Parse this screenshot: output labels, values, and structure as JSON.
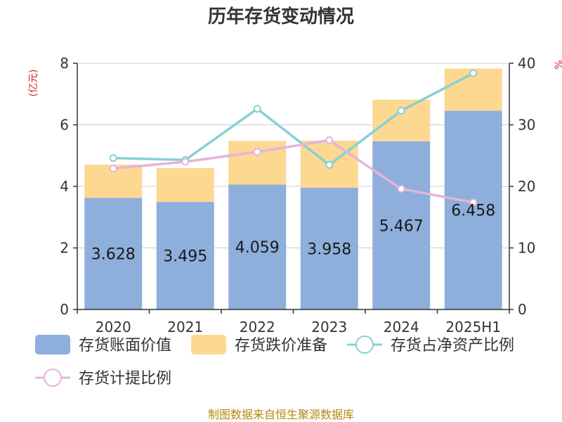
{
  "chart_data": {
    "type": "bar",
    "title": "历年存货变动情况",
    "categories": [
      "2020",
      "2021",
      "2022",
      "2023",
      "2024",
      "2025H1"
    ],
    "left_axis": {
      "unit": "(亿元)",
      "ylim": [
        0,
        8
      ],
      "ticks": [
        "0",
        "2",
        "4",
        "6",
        "8"
      ]
    },
    "right_axis": {
      "unit": "%",
      "ylim": [
        0,
        40
      ],
      "ticks": [
        "0",
        "10",
        "20",
        "30",
        "40"
      ]
    },
    "series": [
      {
        "name": "存货账面价值",
        "kind": "bar",
        "axis": "left",
        "color": "#8eaedc",
        "values": [
          3.628,
          3.495,
          4.059,
          3.958,
          5.467,
          6.458
        ],
        "labels": [
          "3.628",
          "3.495",
          "4.059",
          "3.958",
          "5.467",
          "6.458"
        ]
      },
      {
        "name": "存货跌价准备",
        "kind": "bar-stack",
        "axis": "left",
        "color": "#fdd891",
        "values": [
          1.08,
          1.1,
          1.42,
          1.53,
          1.35,
          1.37
        ]
      },
      {
        "name": "存货占净资产比例",
        "kind": "line",
        "axis": "right",
        "color": "#88d0d2",
        "values": [
          24.6,
          24.3,
          32.6,
          23.5,
          32.3,
          38.4
        ]
      },
      {
        "name": "存货计提比例",
        "kind": "line",
        "axis": "right",
        "color": "#e6b3dc",
        "values": [
          22.9,
          24.0,
          25.6,
          27.5,
          19.6,
          17.4
        ]
      }
    ],
    "grid": true,
    "legend_position": "bottom"
  },
  "footer": {
    "source": "制图数据来自恒生聚源数据库"
  }
}
